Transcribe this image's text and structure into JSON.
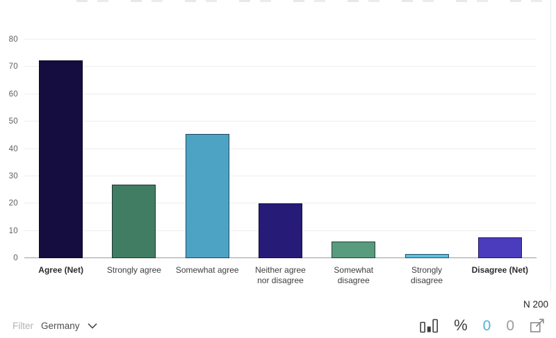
{
  "chart_data": {
    "type": "bar",
    "title": "",
    "xlabel": "",
    "ylabel": "",
    "categories": [
      "Agree (Net)",
      "Strongly agree",
      "Somewhat agree",
      "Neither agree nor disagree",
      "Somewhat disagree",
      "Strongly disagree",
      "Disagree (Net)"
    ],
    "category_lines": [
      [
        "Agree (Net)"
      ],
      [
        "Strongly agree"
      ],
      [
        "Somewhat agree"
      ],
      [
        "Neither agree",
        "nor disagree"
      ],
      [
        "Somewhat",
        "disagree"
      ],
      [
        "Strongly",
        "disagree"
      ],
      [
        "Disagree (Net)"
      ]
    ],
    "emphasized": [
      true,
      false,
      false,
      false,
      false,
      false,
      true
    ],
    "values": [
      72.5,
      27,
      45.5,
      20,
      6,
      1.5,
      7.5
    ],
    "bar_colors": [
      "#150d3f",
      "#417d63",
      "#4da3c4",
      "#261b76",
      "#589b7d",
      "#5ac0e0",
      "#4b3cbe"
    ],
    "ylim": [
      0,
      80
    ],
    "yticks": [
      0,
      10,
      20,
      30,
      40,
      50,
      60,
      70,
      80
    ],
    "grid": true,
    "legend": false
  },
  "footer": {
    "filter": {
      "label": "Filter",
      "value": "Germany"
    },
    "sample_label": "N 200",
    "tools": {
      "percent_symbol": "%",
      "zero_active": "0",
      "zero_inactive": "0"
    }
  },
  "colors": {
    "zero_active": "#4fb3d9",
    "zero_inactive": "#9b9b9b",
    "icon_dark": "#3c3c3c",
    "icon_gray": "#8a8a8a",
    "gridline": "#ededed",
    "axis_line": "#9b9b9b"
  }
}
